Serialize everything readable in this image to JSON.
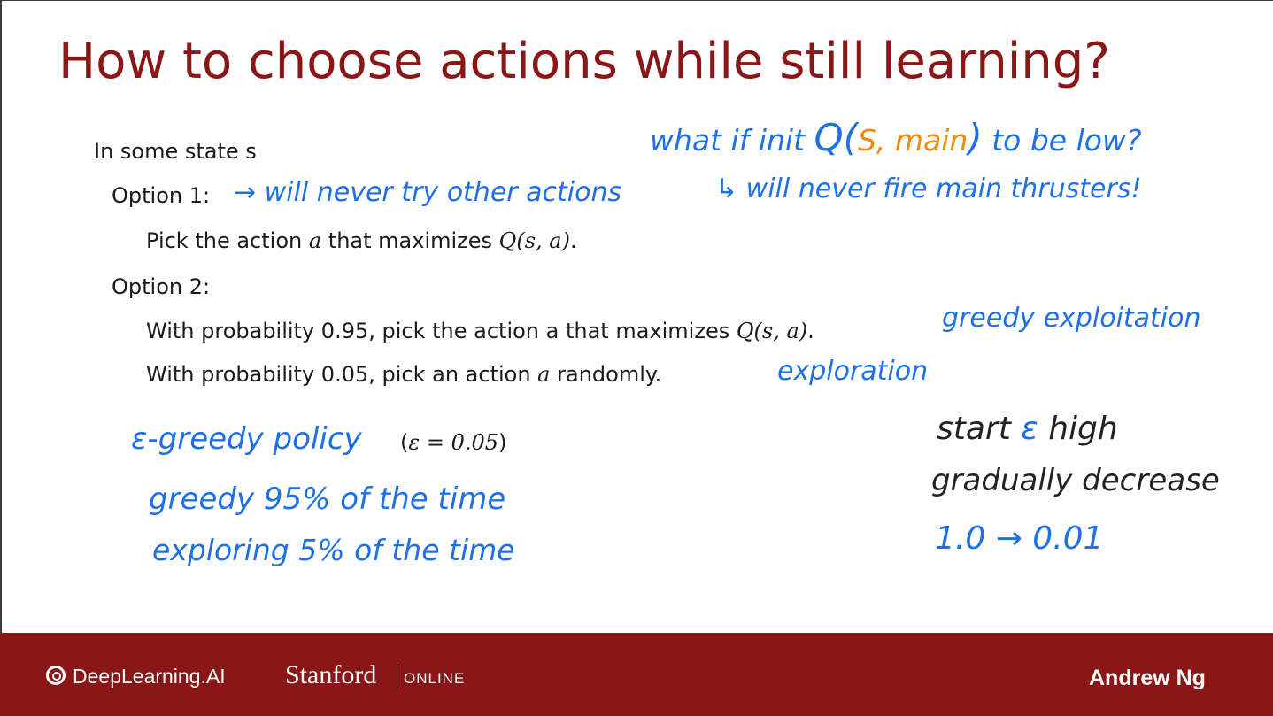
{
  "slide": {
    "title": "How to choose actions while still learning?"
  },
  "content": {
    "state_line": "In some state s",
    "option1_label": "Option 1:",
    "option1_text_a": "Pick the action ",
    "option1_var": "a",
    "option1_text_b": " that maximizes ",
    "option1_q": "Q(s, a)",
    "option1_end": ".",
    "option2_label": "Option 2:",
    "option2_line1_text": "With probability 0.95, pick the action a that maximizes ",
    "option2_line1_q": "Q(s, a)",
    "option2_line1_end": ".",
    "option2_line2_text_a": "With probability 0.05, pick an action ",
    "option2_line2_var": "a",
    "option2_line2_text_b": " randomly.",
    "epsilon_paren_open": "(",
    "epsilon_value": "ε = 0.05",
    "epsilon_paren_close": ")"
  },
  "annotations": {
    "what_if_a": "what if init ",
    "what_if_q_open": "Q(",
    "what_if_s": "S,",
    "what_if_main": " main",
    "what_if_q_close": ")",
    "what_if_b": " to be low?",
    "never_fire": "↳ will never fire main thrusters!",
    "never_try": "→ will never try other actions",
    "greedy_exploitation": "greedy exploitation",
    "exploration": "exploration",
    "epsilon_greedy_policy": "ε-greedy policy",
    "greedy_95": "greedy 95% of the time",
    "exploring_5": "exploring 5% of the time",
    "start_eps_a": "start ",
    "start_eps_sym": "ε",
    "start_eps_b": " high",
    "gradually_decrease": "gradually decrease",
    "schedule": "1.0 → 0.01"
  },
  "footer": {
    "deeplearning_logo": "DeepLearning.AI",
    "stanford": "Stanford",
    "online": "ONLINE",
    "author": "Andrew Ng"
  },
  "colors": {
    "title": "#8b1616",
    "footer_bg": "#8a1616",
    "annotation_blue": "#1f6fe8",
    "annotation_orange": "#f08a0a",
    "annotation_black": "#222222"
  }
}
